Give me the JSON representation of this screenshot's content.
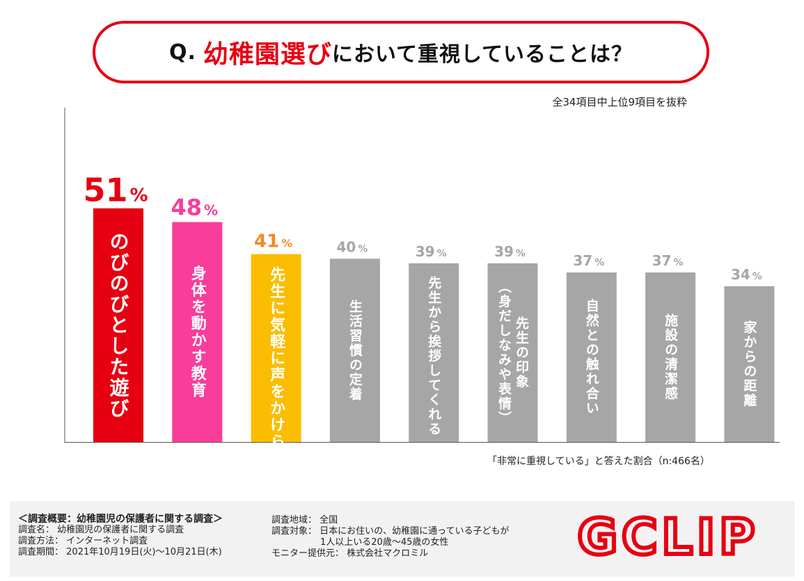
{
  "title": {
    "prefix": "Q.",
    "highlight": "幼稚園選び",
    "suffix": "において重視していることは？"
  },
  "note_top": "全34項目中上位9項目を抜粋",
  "note_bottom": "「非常に重視している」と答えた割合（n:466名）",
  "colors": {
    "red": "#e60012",
    "pink": "#f83d9a",
    "yellow": "#fbbd01",
    "orange": "#f08a2c",
    "gray": "#a6a6a6"
  },
  "chart_data": {
    "type": "bar",
    "title": "幼稚園選びにおいて重視していることは？",
    "categories": [
      "のびのびとした遊び",
      "身体を動かす教育",
      "先生に気軽に声をかけられる",
      "生活習慣の定着",
      "先生から挨拶してくれる",
      "先生の印象（身だしなみや表情）",
      "自然との触れ合い",
      "施設の清潔感",
      "家からの距離"
    ],
    "label_lines": [
      [
        "のびのびとした遊び"
      ],
      [
        "身体を動かす教育"
      ],
      [
        "先生に気軽に声をかけられる"
      ],
      [
        "生活習慣の定着"
      ],
      [
        "先生から挨拶してくれる"
      ],
      [
        "先生の印象",
        "（身だしなみや表情）"
      ],
      [
        "自然との触れ合い"
      ],
      [
        "施設の清潔感"
      ],
      [
        "家からの距離"
      ]
    ],
    "values": [
      51,
      48,
      41,
      40,
      39,
      39,
      37,
      37,
      34
    ],
    "unit": "%",
    "bar_colors": [
      "#e60012",
      "#f83d9a",
      "#fbbd01",
      "#a6a6a6",
      "#a6a6a6",
      "#a6a6a6",
      "#a6a6a6",
      "#a6a6a6",
      "#a6a6a6"
    ],
    "value_label_colors": [
      "#e60012",
      "#f83d9a",
      "#f08a2c",
      "#a6a6a6",
      "#a6a6a6",
      "#a6a6a6",
      "#a6a6a6",
      "#a6a6a6",
      "#a6a6a6"
    ],
    "ylim": [
      0,
      60
    ],
    "xlabel": "",
    "ylabel": "",
    "grid": false
  },
  "footer": {
    "heading": "＜調査概要：幼稚園児の保護者に関する調査＞",
    "left": [
      {
        "label": "調査名：",
        "value": "幼稚園児の保護者に関する調査"
      },
      {
        "label": "調査方法：",
        "value": "インターネット調査"
      },
      {
        "label": "調査期間：",
        "value": "2021年10月19日(火)～10月21日(木)"
      }
    ],
    "right": [
      {
        "label": "調査地域：",
        "value": "全国"
      },
      {
        "label": "調査対象：",
        "value": "日本にお住いの、幼稚園に通っている子どもが"
      },
      {
        "label": "",
        "value": "1人以上いる20歳～45歳の女性"
      },
      {
        "label": "モニター提供元：",
        "value": "株式会社マクロミル"
      }
    ],
    "logo_text": "GCLIP"
  }
}
